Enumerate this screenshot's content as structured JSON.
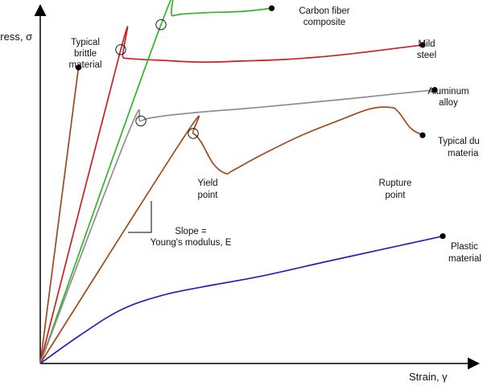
{
  "chart_data": {
    "type": "line",
    "title": "",
    "xlabel": "Strain, γ",
    "ylabel": "Stress, σ",
    "x_units": "arbitrary strain",
    "y_units": "arbitrary stress",
    "xlim": [
      0,
      100
    ],
    "ylim": [
      0,
      100
    ],
    "grid": false,
    "legend": "none (curves labelled directly)",
    "series": [
      {
        "name": "Typical brittle material",
        "color": "#9a4a1e",
        "points": [
          [
            0,
            0
          ],
          [
            9.5,
            83
          ]
        ],
        "end_marker": "dot"
      },
      {
        "name": "Mild steel",
        "color": "#cc1e24",
        "points": [
          [
            0,
            0
          ],
          [
            20,
            88
          ],
          [
            20.5,
            86
          ],
          [
            22,
            85.5
          ],
          [
            30,
            85
          ],
          [
            40,
            84.5
          ],
          [
            50,
            84.8
          ],
          [
            60,
            85.2
          ],
          [
            70,
            86
          ],
          [
            80,
            87.2
          ],
          [
            90,
            88.6
          ],
          [
            95,
            89.3
          ]
        ],
        "markers": [
          {
            "type": "circle",
            "at": [
              20,
              88
            ]
          }
        ],
        "end_marker": "dot"
      },
      {
        "name": "Carbon fiber composite",
        "color": "#2fb52a",
        "points": [
          [
            0,
            0
          ],
          [
            30,
            95
          ],
          [
            33,
            97.5
          ],
          [
            40,
            98.3
          ],
          [
            50,
            98.7
          ],
          [
            57.5,
            99.6
          ]
        ],
        "markers": [
          {
            "type": "circle",
            "at": [
              30,
              95
            ]
          }
        ],
        "end_marker": "dot"
      },
      {
        "name": "Aluminum alloy",
        "color": "#8f8f8f",
        "points": [
          [
            0,
            0
          ],
          [
            22,
            65
          ],
          [
            25,
            68
          ],
          [
            30,
            69.3
          ],
          [
            40,
            70.5
          ],
          [
            50,
            71.4
          ],
          [
            60,
            72.4
          ],
          [
            70,
            73.5
          ],
          [
            80,
            74.6
          ],
          [
            90,
            75.8
          ],
          [
            98,
            76.7
          ]
        ],
        "markers": [
          {
            "type": "circle",
            "at": [
              25,
              68
            ]
          }
        ],
        "end_marker": "dot"
      },
      {
        "name": "Typical ductile material",
        "color": "#a04a1c",
        "points": [
          [
            0,
            0
          ],
          [
            36,
            64
          ],
          [
            38,
            64.5
          ],
          [
            40,
            62
          ],
          [
            43,
            56
          ],
          [
            46,
            53.3
          ],
          [
            48,
            54.2
          ],
          [
            55,
            58.5
          ],
          [
            65,
            64
          ],
          [
            75,
            68.5
          ],
          [
            82,
            71.4
          ],
          [
            87,
            71.8
          ],
          [
            89,
            70.5
          ],
          [
            92,
            66
          ],
          [
            95,
            64
          ]
        ],
        "markers": [
          {
            "type": "circle",
            "at": [
              38,
              64.5
            ]
          }
        ],
        "end_marker": "dot"
      },
      {
        "name": "Plastic material",
        "color": "#2a1fb8",
        "points": [
          [
            0,
            0
          ],
          [
            10,
            8
          ],
          [
            20,
            15
          ],
          [
            30,
            19
          ],
          [
            40,
            21.4
          ],
          [
            55,
            24.5
          ],
          [
            70,
            28.3
          ],
          [
            85,
            32
          ],
          [
            100,
            35.7
          ]
        ],
        "end_marker": "dot"
      }
    ],
    "annotations": [
      {
        "text": [
          "Typical",
          "brittle",
          "material"
        ]
      },
      {
        "text": [
          "Mild",
          "steel"
        ]
      },
      {
        "text": [
          "Carbon fiber",
          "composite"
        ]
      },
      {
        "text": [
          "Aluminum",
          "alloy"
        ]
      },
      {
        "text": [
          "Typical du",
          "materia"
        ]
      },
      {
        "text": [
          "Yield",
          "point"
        ]
      },
      {
        "text": [
          "Rupture",
          "point"
        ]
      },
      {
        "text": [
          "Slope =",
          "Young's modulus, E"
        ]
      },
      {
        "text": [
          "Plastic",
          "material"
        ]
      }
    ]
  }
}
